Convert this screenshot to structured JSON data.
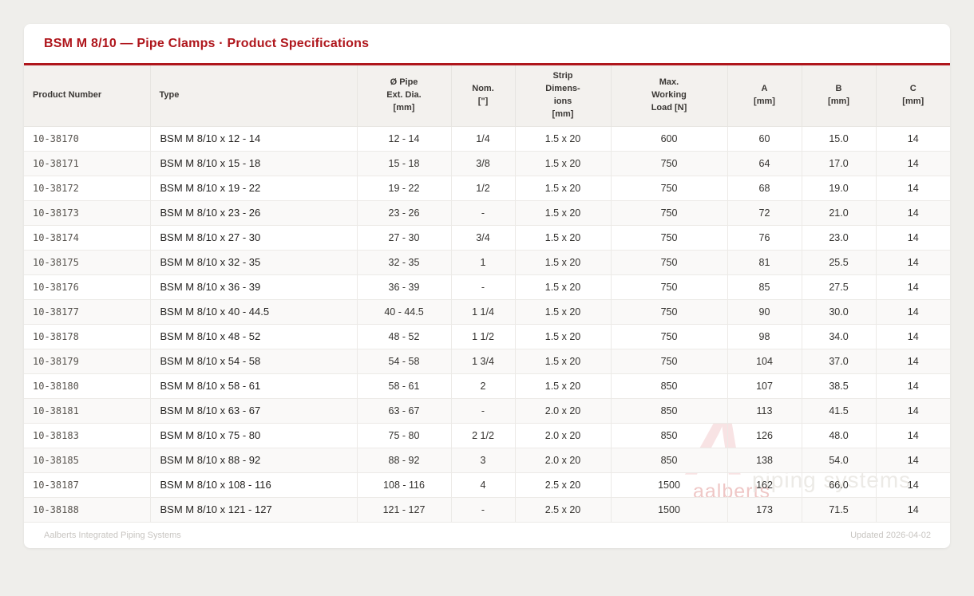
{
  "card": {
    "title": "BSM M 8/10 — Pipe Clamps · Product Specifications"
  },
  "table": {
    "headers": [
      {
        "label": "Product Number"
      },
      {
        "label": "Type"
      },
      {
        "label": "Ø Pipe\nExt. Dia.\n[mm]"
      },
      {
        "label": "Nom.\n[\"]"
      },
      {
        "label": "Strip\nDimens-\nions\n[mm]"
      },
      {
        "label": "Max.\nWorking\nLoad [N]"
      },
      {
        "label": "A\n[mm]"
      },
      {
        "label": "B\n[mm]"
      },
      {
        "label": "C\n[mm]"
      }
    ],
    "rows": [
      [
        "10-38170",
        "BSM M 8/10 x 12 - 14",
        "12 - 14",
        "1/4",
        "1.5 x 20",
        "600",
        "60",
        "15.0",
        "14"
      ],
      [
        "10-38171",
        "BSM M 8/10 x 15 - 18",
        "15 - 18",
        "3/8",
        "1.5 x 20",
        "750",
        "64",
        "17.0",
        "14"
      ],
      [
        "10-38172",
        "BSM M 8/10 x 19 - 22",
        "19 - 22",
        "1/2",
        "1.5 x 20",
        "750",
        "68",
        "19.0",
        "14"
      ],
      [
        "10-38173",
        "BSM M 8/10 x 23 - 26",
        "23 - 26",
        "-",
        "1.5 x 20",
        "750",
        "72",
        "21.0",
        "14"
      ],
      [
        "10-38174",
        "BSM M 8/10 x 27 - 30",
        "27 - 30",
        "3/4",
        "1.5 x 20",
        "750",
        "76",
        "23.0",
        "14"
      ],
      [
        "10-38175",
        "BSM M 8/10 x 32 - 35",
        "32 - 35",
        "1",
        "1.5 x 20",
        "750",
        "81",
        "25.5",
        "14"
      ],
      [
        "10-38176",
        "BSM M 8/10 x 36 - 39",
        "36 - 39",
        "-",
        "1.5 x 20",
        "750",
        "85",
        "27.5",
        "14"
      ],
      [
        "10-38177",
        "BSM M 8/10 x 40 - 44.5",
        "40 - 44.5",
        "1 1/4",
        "1.5 x 20",
        "750",
        "90",
        "30.0",
        "14"
      ],
      [
        "10-38178",
        "BSM M 8/10 x 48 - 52",
        "48 - 52",
        "1 1/2",
        "1.5 x 20",
        "750",
        "98",
        "34.0",
        "14"
      ],
      [
        "10-38179",
        "BSM M 8/10 x 54 - 58",
        "54 - 58",
        "1 3/4",
        "1.5 x 20",
        "750",
        "104",
        "37.0",
        "14"
      ],
      [
        "10-38180",
        "BSM M 8/10 x 58 - 61",
        "58 - 61",
        "2",
        "1.5 x 20",
        "850",
        "107",
        "38.5",
        "14"
      ],
      [
        "10-38181",
        "BSM M 8/10 x 63 - 67",
        "63 - 67",
        "-",
        "2.0 x 20",
        "850",
        "113",
        "41.5",
        "14"
      ],
      [
        "10-38183",
        "BSM M 8/10 x 75 - 80",
        "75 - 80",
        "2 1/2",
        "2.0 x 20",
        "850",
        "126",
        "48.0",
        "14"
      ],
      [
        "10-38185",
        "BSM M 8/10 x 88 - 92",
        "88 - 92",
        "3",
        "2.0 x 20",
        "850",
        "138",
        "54.0",
        "14"
      ],
      [
        "10-38187",
        "BSM M 8/10 x 108 - 116",
        "108 - 116",
        "4",
        "2.5 x 20",
        "1500",
        "162",
        "66.0",
        "14"
      ],
      [
        "10-38188",
        "BSM M 8/10 x 121 - 127",
        "121 - 127",
        "-",
        "2.5 x 20",
        "1500",
        "173",
        "71.5",
        "14"
      ]
    ]
  },
  "footer": {
    "left": "Aalberts Integrated Piping Systems",
    "right": "Updated 2026-04-02"
  },
  "watermark": {
    "logo_letter": "A",
    "brand": "aalberts",
    "tagline": "piping systems"
  },
  "colors": {
    "accent_red": "#AF161C",
    "page_bg": "#EFEEEB",
    "header_bg": "#F3F1EE",
    "alt_row_bg": "#FAF9F8",
    "border": "#ECEAE7"
  }
}
